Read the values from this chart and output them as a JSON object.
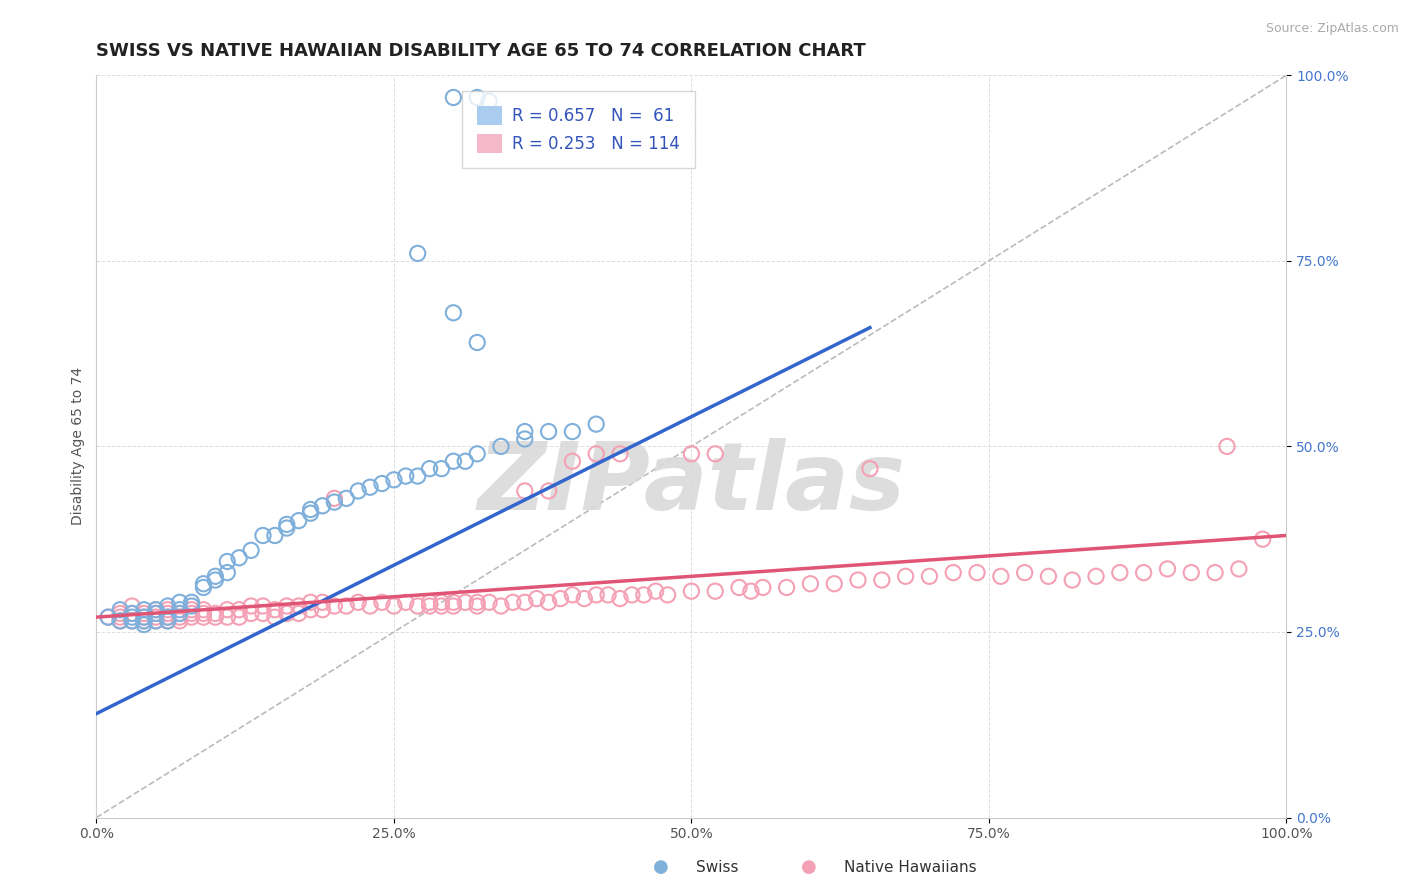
{
  "title": "SWISS VS NATIVE HAWAIIAN DISABILITY AGE 65 TO 74 CORRELATION CHART",
  "source": "Source: ZipAtlas.com",
  "ylabel": "Disability Age 65 to 74",
  "xlim": [
    0.0,
    1.0
  ],
  "ylim": [
    0.0,
    1.0
  ],
  "xticks": [
    0.0,
    0.25,
    0.5,
    0.75,
    1.0
  ],
  "yticks": [
    0.0,
    0.25,
    0.5,
    0.75,
    1.0
  ],
  "xtick_labels": [
    "0.0%",
    "25.0%",
    "50.0%",
    "75.0%",
    "100.0%"
  ],
  "ytick_labels": [
    "0.0%",
    "25.0%",
    "50.0%",
    "75.0%",
    "100.0%"
  ],
  "swiss_color": "#7fafdb",
  "native_hawaiian_color": "#f4a0b5",
  "trend_swiss_color": "#3366cc",
  "trend_native_color": "#e05575",
  "ref_line_color": "#bbbbbb",
  "swiss_R": 0.657,
  "swiss_N": 61,
  "native_R": 0.253,
  "native_N": 114,
  "swiss_trend_x": [
    0.0,
    0.65
  ],
  "swiss_trend_y": [
    0.14,
    0.66
  ],
  "native_trend_x": [
    0.0,
    1.0
  ],
  "native_trend_y": [
    0.27,
    0.38
  ],
  "background_color": "#ffffff",
  "grid_color": "#dddddd",
  "watermark": "ZIPatlas",
  "swiss_dots": [
    [
      0.01,
      0.27
    ],
    [
      0.02,
      0.28
    ],
    [
      0.02,
      0.265
    ],
    [
      0.03,
      0.27
    ],
    [
      0.03,
      0.275
    ],
    [
      0.03,
      0.265
    ],
    [
      0.04,
      0.27
    ],
    [
      0.04,
      0.28
    ],
    [
      0.04,
      0.265
    ],
    [
      0.04,
      0.26
    ],
    [
      0.05,
      0.275
    ],
    [
      0.05,
      0.28
    ],
    [
      0.05,
      0.265
    ],
    [
      0.06,
      0.27
    ],
    [
      0.06,
      0.285
    ],
    [
      0.06,
      0.265
    ],
    [
      0.07,
      0.275
    ],
    [
      0.07,
      0.28
    ],
    [
      0.07,
      0.29
    ],
    [
      0.08,
      0.285
    ],
    [
      0.08,
      0.29
    ],
    [
      0.09,
      0.31
    ],
    [
      0.09,
      0.315
    ],
    [
      0.1,
      0.32
    ],
    [
      0.1,
      0.325
    ],
    [
      0.11,
      0.33
    ],
    [
      0.11,
      0.345
    ],
    [
      0.12,
      0.35
    ],
    [
      0.13,
      0.36
    ],
    [
      0.14,
      0.38
    ],
    [
      0.15,
      0.38
    ],
    [
      0.16,
      0.39
    ],
    [
      0.16,
      0.395
    ],
    [
      0.17,
      0.4
    ],
    [
      0.18,
      0.41
    ],
    [
      0.18,
      0.415
    ],
    [
      0.19,
      0.42
    ],
    [
      0.2,
      0.425
    ],
    [
      0.21,
      0.43
    ],
    [
      0.22,
      0.44
    ],
    [
      0.23,
      0.445
    ],
    [
      0.24,
      0.45
    ],
    [
      0.25,
      0.455
    ],
    [
      0.26,
      0.46
    ],
    [
      0.27,
      0.46
    ],
    [
      0.28,
      0.47
    ],
    [
      0.29,
      0.47
    ],
    [
      0.3,
      0.48
    ],
    [
      0.31,
      0.48
    ],
    [
      0.32,
      0.49
    ],
    [
      0.34,
      0.5
    ],
    [
      0.36,
      0.51
    ],
    [
      0.38,
      0.52
    ],
    [
      0.4,
      0.52
    ],
    [
      0.42,
      0.53
    ],
    [
      0.3,
      0.97
    ],
    [
      0.32,
      0.97
    ],
    [
      0.33,
      0.965
    ],
    [
      0.27,
      0.76
    ],
    [
      0.3,
      0.68
    ],
    [
      0.32,
      0.64
    ],
    [
      0.36,
      0.52
    ]
  ],
  "native_dots": [
    [
      0.01,
      0.27
    ],
    [
      0.02,
      0.27
    ],
    [
      0.02,
      0.265
    ],
    [
      0.02,
      0.275
    ],
    [
      0.03,
      0.265
    ],
    [
      0.03,
      0.275
    ],
    [
      0.03,
      0.285
    ],
    [
      0.04,
      0.265
    ],
    [
      0.04,
      0.27
    ],
    [
      0.04,
      0.275
    ],
    [
      0.05,
      0.265
    ],
    [
      0.05,
      0.27
    ],
    [
      0.05,
      0.275
    ],
    [
      0.05,
      0.28
    ],
    [
      0.06,
      0.265
    ],
    [
      0.06,
      0.27
    ],
    [
      0.06,
      0.275
    ],
    [
      0.06,
      0.28
    ],
    [
      0.07,
      0.265
    ],
    [
      0.07,
      0.27
    ],
    [
      0.07,
      0.275
    ],
    [
      0.08,
      0.27
    ],
    [
      0.08,
      0.275
    ],
    [
      0.08,
      0.28
    ],
    [
      0.09,
      0.27
    ],
    [
      0.09,
      0.275
    ],
    [
      0.09,
      0.28
    ],
    [
      0.1,
      0.27
    ],
    [
      0.1,
      0.275
    ],
    [
      0.11,
      0.27
    ],
    [
      0.11,
      0.28
    ],
    [
      0.12,
      0.27
    ],
    [
      0.12,
      0.28
    ],
    [
      0.13,
      0.275
    ],
    [
      0.13,
      0.285
    ],
    [
      0.14,
      0.275
    ],
    [
      0.14,
      0.285
    ],
    [
      0.15,
      0.27
    ],
    [
      0.15,
      0.28
    ],
    [
      0.16,
      0.275
    ],
    [
      0.16,
      0.285
    ],
    [
      0.17,
      0.275
    ],
    [
      0.17,
      0.285
    ],
    [
      0.18,
      0.28
    ],
    [
      0.18,
      0.29
    ],
    [
      0.19,
      0.28
    ],
    [
      0.19,
      0.29
    ],
    [
      0.2,
      0.43
    ],
    [
      0.2,
      0.285
    ],
    [
      0.21,
      0.285
    ],
    [
      0.22,
      0.29
    ],
    [
      0.23,
      0.285
    ],
    [
      0.24,
      0.29
    ],
    [
      0.25,
      0.285
    ],
    [
      0.26,
      0.29
    ],
    [
      0.27,
      0.285
    ],
    [
      0.28,
      0.285
    ],
    [
      0.28,
      0.29
    ],
    [
      0.29,
      0.285
    ],
    [
      0.29,
      0.29
    ],
    [
      0.3,
      0.29
    ],
    [
      0.3,
      0.285
    ],
    [
      0.31,
      0.29
    ],
    [
      0.32,
      0.285
    ],
    [
      0.32,
      0.29
    ],
    [
      0.33,
      0.29
    ],
    [
      0.34,
      0.285
    ],
    [
      0.35,
      0.29
    ],
    [
      0.36,
      0.29
    ],
    [
      0.37,
      0.295
    ],
    [
      0.38,
      0.29
    ],
    [
      0.39,
      0.295
    ],
    [
      0.4,
      0.3
    ],
    [
      0.41,
      0.295
    ],
    [
      0.42,
      0.3
    ],
    [
      0.43,
      0.3
    ],
    [
      0.44,
      0.295
    ],
    [
      0.45,
      0.3
    ],
    [
      0.46,
      0.3
    ],
    [
      0.47,
      0.305
    ],
    [
      0.48,
      0.3
    ],
    [
      0.5,
      0.305
    ],
    [
      0.52,
      0.305
    ],
    [
      0.54,
      0.31
    ],
    [
      0.55,
      0.305
    ],
    [
      0.56,
      0.31
    ],
    [
      0.58,
      0.31
    ],
    [
      0.6,
      0.315
    ],
    [
      0.62,
      0.315
    ],
    [
      0.64,
      0.32
    ],
    [
      0.65,
      0.47
    ],
    [
      0.66,
      0.32
    ],
    [
      0.68,
      0.325
    ],
    [
      0.7,
      0.325
    ],
    [
      0.72,
      0.33
    ],
    [
      0.74,
      0.33
    ],
    [
      0.76,
      0.325
    ],
    [
      0.78,
      0.33
    ],
    [
      0.8,
      0.325
    ],
    [
      0.82,
      0.32
    ],
    [
      0.84,
      0.325
    ],
    [
      0.86,
      0.33
    ],
    [
      0.88,
      0.33
    ],
    [
      0.9,
      0.335
    ],
    [
      0.92,
      0.33
    ],
    [
      0.94,
      0.33
    ],
    [
      0.95,
      0.5
    ],
    [
      0.96,
      0.335
    ],
    [
      0.98,
      0.375
    ],
    [
      0.4,
      0.48
    ],
    [
      0.42,
      0.49
    ],
    [
      0.44,
      0.49
    ],
    [
      0.5,
      0.49
    ],
    [
      0.52,
      0.49
    ],
    [
      0.36,
      0.44
    ],
    [
      0.38,
      0.44
    ]
  ],
  "legend_swiss_color": "#aaccee",
  "legend_native_color": "#f4b8c8",
  "title_fontsize": 13,
  "axis_label_fontsize": 10,
  "tick_fontsize": 10,
  "legend_fontsize": 12,
  "source_fontsize": 9
}
